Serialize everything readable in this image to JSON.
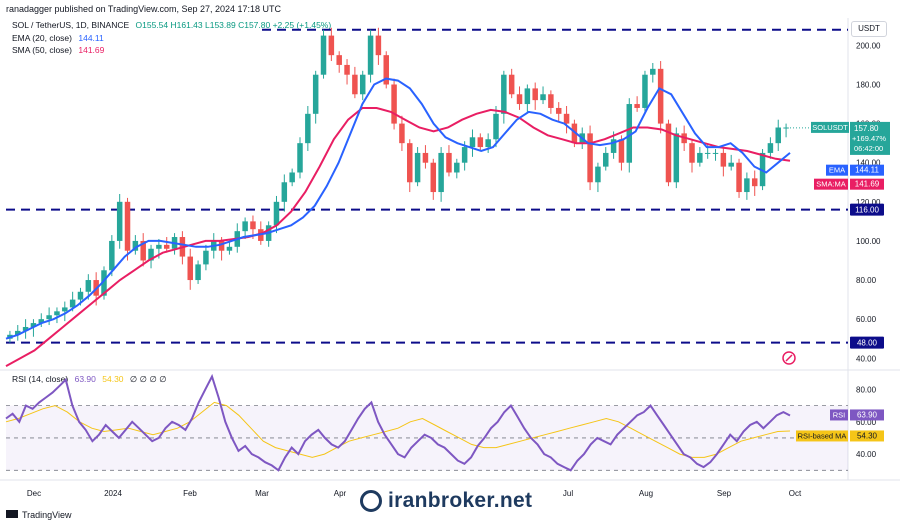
{
  "header": {
    "publisher": "ranadagger published on TradingView.com, Sep 27, 2024 17:18 UTC"
  },
  "main_legend": {
    "symbol": "SOL / TetherUS, 1D, BINANCE",
    "ohlc": "O155.54  H161.43  L153.89  C157.80  +2.25 (+1.45%)",
    "ema_label": "EMA (20, close)",
    "ema_value": "144.11",
    "sma_label": "SMA (50, close)",
    "sma_value": "141.69"
  },
  "rsi_legend": {
    "label": "RSI (14, close)",
    "value": "63.90",
    "ma_value": "54.30",
    "extra": "∅ ∅ ∅ ∅"
  },
  "currency_button": "USDT",
  "footer": {
    "brand": "TradingView"
  },
  "watermark": "iranbroker.net",
  "colors": {
    "up": "#26a69a",
    "down": "#ef5350",
    "ema": "#2962ff",
    "sma": "#e91e63",
    "rsi": "#7e57c2",
    "rsi_ma": "#f5c518",
    "level": "#0c0c8a"
  },
  "chart_data": [
    {
      "type": "candlestick",
      "x_ticks": [
        "Dec",
        "2024",
        "Feb",
        "Mar",
        "Apr",
        "Jul",
        "Aug",
        "Sep",
        "Oct"
      ],
      "y_ticks": [
        "40.00",
        "60.00",
        "80.00",
        "100.00",
        "120.00",
        "140.00",
        "160.00",
        "180.00",
        "200.00"
      ],
      "ylim": [
        34,
        214
      ],
      "horizontal_levels": [
        {
          "value": 208
        },
        {
          "value": 116.0,
          "label": "116.00"
        },
        {
          "value": 48.0,
          "label": "48.00"
        }
      ],
      "last_price": {
        "symbol": "SOLUSDT",
        "value": "157.80",
        "change": "+169.47%",
        "countdown": "06:42:00"
      },
      "ema_tag": {
        "name": "EMA",
        "value": "144.11"
      },
      "sma_tag": {
        "name": "SMA:MA",
        "value": "141.69"
      },
      "series": [
        {
          "name": "SOLUSDT",
          "values": [
            52,
            54,
            56,
            58,
            60,
            62,
            64,
            66,
            70,
            74,
            80,
            72,
            85,
            100,
            120,
            95,
            100,
            90,
            96,
            98,
            96,
            102,
            92,
            80,
            88,
            95,
            100,
            95,
            97,
            105,
            110,
            106,
            100,
            108,
            120,
            130,
            135,
            150,
            165,
            185,
            205,
            195,
            190,
            185,
            175,
            185,
            205,
            195,
            180,
            160,
            150,
            130,
            145,
            140,
            125,
            145,
            135,
            140,
            148,
            153,
            148,
            152,
            165,
            185,
            175,
            170,
            178,
            172,
            175,
            168,
            165,
            160,
            150,
            155,
            130,
            138,
            145,
            152,
            140,
            170,
            168,
            185,
            188,
            160,
            130,
            155,
            150,
            140,
            145,
            145,
            145,
            138,
            140,
            125,
            132,
            128,
            145,
            150,
            158,
            158
          ]
        },
        {
          "name": "EMA (20, close)",
          "values": [
            50,
            52,
            55,
            58,
            60,
            63,
            67,
            72,
            78,
            85,
            92,
            97,
            100,
            100,
            99,
            98,
            97,
            97,
            98,
            100,
            102,
            103,
            104,
            106,
            108,
            112,
            118,
            128,
            140,
            155,
            170,
            180,
            183,
            182,
            178,
            170,
            160,
            153,
            150,
            148,
            146,
            148,
            155,
            162,
            166,
            165,
            162,
            160,
            155,
            150,
            149,
            150,
            152,
            156,
            168,
            178,
            175,
            165,
            155,
            148,
            148,
            150,
            145,
            138,
            135,
            140,
            145
          ]
        },
        {
          "name": "SMA (50, close)",
          "values": [
            36,
            40,
            44,
            50,
            56,
            62,
            68,
            74,
            80,
            85,
            90,
            94,
            96,
            98,
            100,
            100,
            101,
            102,
            104,
            108,
            115,
            125,
            138,
            152,
            162,
            168,
            168,
            166,
            162,
            158,
            156,
            158,
            162,
            165,
            167,
            166,
            163,
            158,
            154,
            152,
            150,
            150,
            152,
            155,
            158,
            158,
            157,
            154,
            152,
            150,
            148,
            147,
            146,
            144,
            142,
            141
          ]
        }
      ]
    },
    {
      "type": "line",
      "title": "RSI (14, close)",
      "y_ticks": [
        "40.00",
        "60.00",
        "80.00"
      ],
      "ylim": [
        24,
        92
      ],
      "bands": [
        70,
        50,
        30
      ],
      "last_rsi": {
        "name": "RSI",
        "value": "63.90"
      },
      "last_ma": {
        "name": "RSI-based MA",
        "value": "54.30"
      },
      "series": [
        {
          "name": "RSI",
          "values": [
            62,
            65,
            60,
            70,
            68,
            72,
            75,
            78,
            82,
            86,
            70,
            60,
            55,
            48,
            52,
            58,
            54,
            50,
            55,
            60,
            56,
            52,
            48,
            50,
            56,
            60,
            58,
            55,
            62,
            72,
            80,
            88,
            75,
            60,
            50,
            42,
            45,
            40,
            38,
            35,
            33,
            30,
            38,
            44,
            40,
            48,
            52,
            55,
            50,
            46,
            44,
            48,
            55,
            62,
            68,
            72,
            60,
            52,
            46,
            40,
            38,
            44,
            48,
            52,
            50,
            46,
            44,
            40,
            36,
            34,
            38,
            45,
            50,
            56,
            60,
            66,
            70,
            63,
            56,
            50,
            46,
            40,
            38,
            34,
            32,
            30,
            36,
            40,
            46,
            50,
            48,
            46,
            52,
            56,
            60,
            64,
            66,
            70,
            64,
            58,
            52,
            46,
            40,
            38,
            34,
            32,
            35,
            40,
            46,
            52,
            48,
            54,
            58,
            60,
            56,
            60,
            64,
            66,
            63.9
          ]
        },
        {
          "name": "RSI-based MA",
          "values": [
            60,
            62,
            65,
            68,
            70,
            66,
            60,
            56,
            54,
            55,
            56,
            54,
            52,
            54,
            56,
            60,
            66,
            72,
            70,
            64,
            56,
            48,
            44,
            42,
            40,
            38,
            40,
            44,
            48,
            50,
            52,
            54,
            56,
            60,
            62,
            58,
            54,
            50,
            46,
            44,
            44,
            46,
            48,
            50,
            52,
            54,
            56,
            58,
            60,
            62,
            60,
            56,
            52,
            48,
            44,
            40,
            38,
            38,
            40,
            44,
            48,
            50,
            52,
            54,
            54.3
          ]
        }
      ]
    }
  ]
}
